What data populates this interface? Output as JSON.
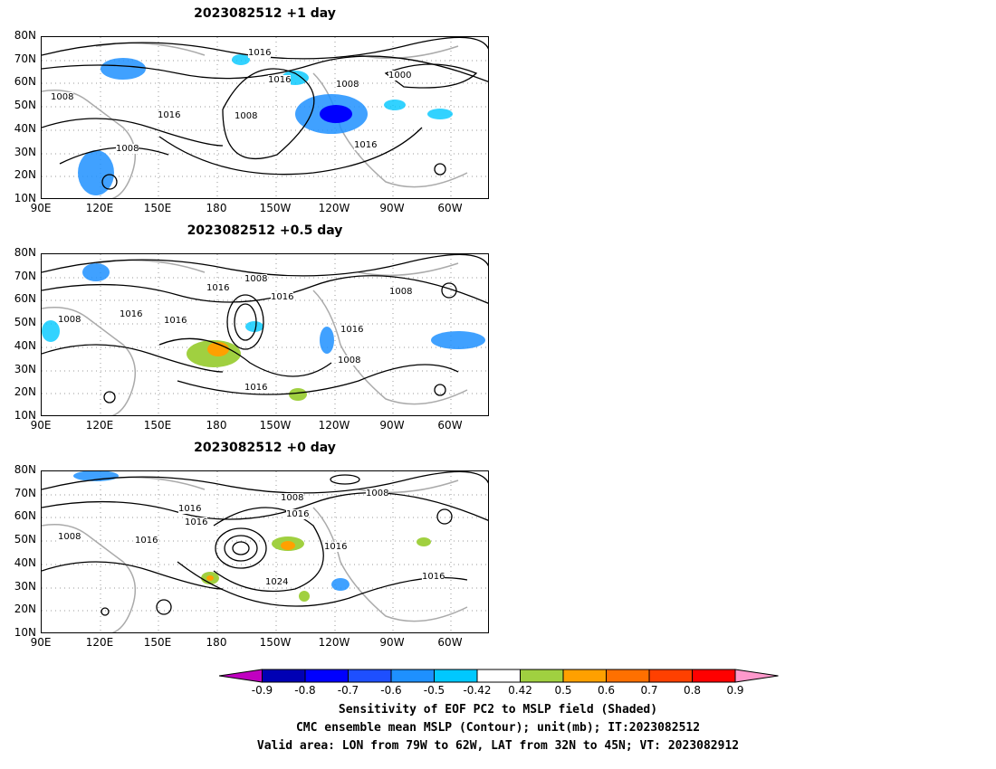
{
  "panels": [
    {
      "title": "2023082512  +1 day",
      "contour_labels": [
        "1016",
        "1016",
        "1008",
        "1000",
        "1008",
        "1016",
        "1008",
        "1016",
        "1008"
      ]
    },
    {
      "title": "2023082512  +0.5 day",
      "contour_labels": [
        "1008",
        "1016",
        "1016",
        "1008",
        "1016",
        "1016",
        "1016",
        "1008",
        "1008",
        "1016"
      ]
    },
    {
      "title": "2023082512  +0 day",
      "contour_labels": [
        "1008",
        "1008",
        "1016",
        "1016",
        "1016",
        "1008",
        "1016",
        "1016",
        "1024",
        "1016"
      ]
    }
  ],
  "lat_labels": [
    "80N",
    "70N",
    "60N",
    "50N",
    "40N",
    "30N",
    "20N",
    "10N"
  ],
  "lon_labels": [
    "90E",
    "120E",
    "150E",
    "180",
    "150W",
    "120W",
    "90W",
    "60W"
  ],
  "colorbar": {
    "ticks": [
      "-0.9",
      "-0.8",
      "-0.7",
      "-0.6",
      "-0.5",
      "-0.42",
      "0.42",
      "0.5",
      "0.6",
      "0.7",
      "0.8",
      "0.9"
    ],
    "colors": [
      "#c000c0",
      "#0000b4",
      "#0000ff",
      "#1e4fff",
      "#1e90ff",
      "#00c8ff",
      "#ffffff",
      "#a0d040",
      "#ffa000",
      "#ff7000",
      "#ff4000",
      "#ff0000",
      "#ff99cc"
    ]
  },
  "captions": {
    "line1": "Sensitivity of EOF PC2 to MSLP field (Shaded)",
    "line2": "CMC ensemble mean MSLP (Contour); unit(mb); IT:2023082512",
    "line3": "Valid area: LON from 79W to 62W, LAT from 32N to 45N; VT: 2023082912"
  }
}
